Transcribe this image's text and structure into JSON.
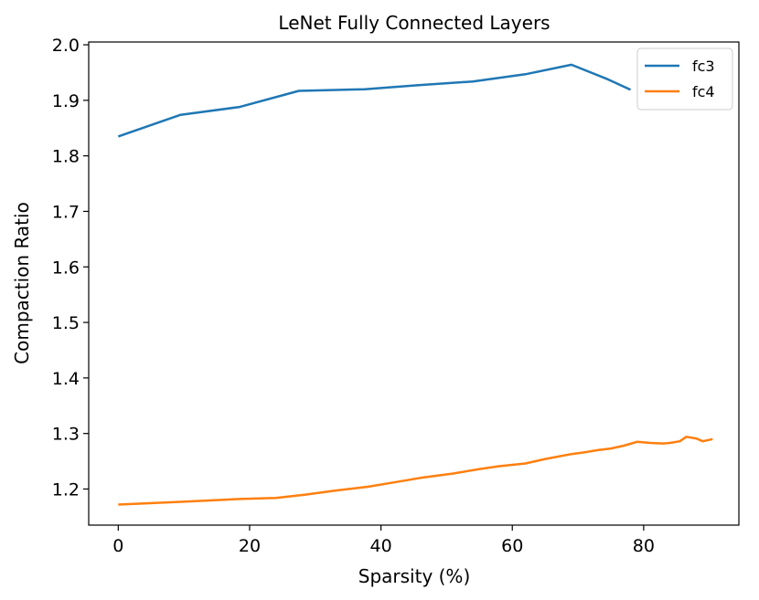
{
  "chart_data": {
    "type": "line",
    "title": "LeNet Fully Connected Layers",
    "xlabel": "Sparsity (%)",
    "ylabel": "Compaction Ratio",
    "xlim": [
      -4.5,
      94.5
    ],
    "ylim": [
      1.135,
      2.005
    ],
    "xticks": [
      0,
      20,
      40,
      60,
      80
    ],
    "yticks": [
      1.2,
      1.3,
      1.4,
      1.5,
      1.6,
      1.7,
      1.8,
      1.9,
      2.0
    ],
    "xtick_labels": [
      "0",
      "20",
      "40",
      "60",
      "80"
    ],
    "ytick_labels": [
      "1.2",
      "1.3",
      "1.4",
      "1.5",
      "1.6",
      "1.7",
      "1.8",
      "1.9",
      "2.0"
    ],
    "grid": false,
    "legend_position": "top-right",
    "series": [
      {
        "name": "fc3",
        "color": "#1f77b4",
        "x": [
          0,
          9.5,
          18.5,
          27.5,
          37.5,
          45.5,
          54,
          62,
          69,
          74.5,
          78
        ],
        "y": [
          1.835,
          1.874,
          1.888,
          1.917,
          1.92,
          1.927,
          1.934,
          1.947,
          1.964,
          1.938,
          1.919
        ]
      },
      {
        "name": "fc4",
        "color": "#ff7f0e",
        "x": [
          0,
          9.5,
          18.5,
          24,
          28.5,
          33,
          38,
          42,
          46,
          51,
          55,
          58,
          62,
          65,
          69,
          71,
          73,
          75,
          77,
          79,
          81,
          83,
          84,
          85.5,
          86.5,
          88,
          89,
          90.5
        ],
        "y": [
          1.172,
          1.177,
          1.182,
          1.184,
          1.19,
          1.197,
          1.204,
          1.212,
          1.22,
          1.228,
          1.236,
          1.241,
          1.246,
          1.254,
          1.263,
          1.266,
          1.27,
          1.273,
          1.278,
          1.285,
          1.283,
          1.282,
          1.283,
          1.286,
          1.294,
          1.291,
          1.286,
          1.29
        ]
      }
    ]
  }
}
